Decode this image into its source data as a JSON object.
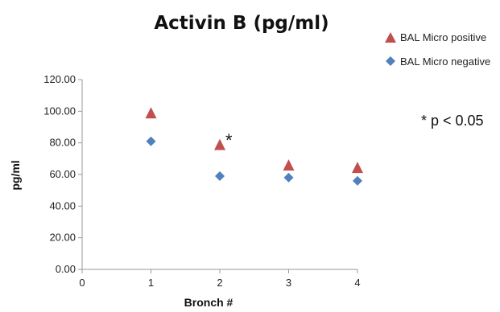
{
  "chart_data": {
    "type": "scatter",
    "title": "Activin B (pg/ml)",
    "xlabel": "Bronch #",
    "ylabel": "pg/ml",
    "xlim": [
      0,
      4
    ],
    "ylim": [
      0,
      120
    ],
    "x_ticks": [
      "0",
      "1",
      "2",
      "3",
      "4"
    ],
    "y_ticks": [
      "0.00",
      "20.00",
      "40.00",
      "60.00",
      "80.00",
      "100.00",
      "120.00"
    ],
    "grid": false,
    "legend_position": "top-right",
    "series": [
      {
        "name": "BAL Micro positive",
        "marker": "triangle",
        "color": "#c0504d",
        "x": [
          1,
          2,
          3,
          4
        ],
        "y": [
          98.5,
          78.5,
          65.5,
          64.0
        ]
      },
      {
        "name": "BAL Micro negative",
        "marker": "diamond",
        "color": "#4f81bd",
        "x": [
          1,
          2,
          3,
          4
        ],
        "y": [
          81.0,
          59.0,
          58.0,
          56.0
        ]
      }
    ],
    "annotations": {
      "star_label": "*",
      "significance_note": "* p < 0.05"
    }
  }
}
